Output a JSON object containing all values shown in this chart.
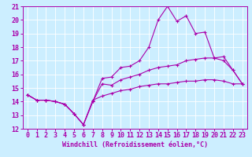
{
  "title": "",
  "xlabel": "Windchill (Refroidissement éolien,°C)",
  "ylabel": "",
  "bg_color": "#cceeff",
  "line_color": "#aa00aa",
  "grid_color": "#ffffff",
  "spine_color": "#aa00aa",
  "xlim": [
    -0.5,
    23.5
  ],
  "ylim": [
    12,
    21
  ],
  "yticks": [
    12,
    13,
    14,
    15,
    16,
    17,
    18,
    19,
    20,
    21
  ],
  "xticks": [
    0,
    1,
    2,
    3,
    4,
    5,
    6,
    7,
    8,
    9,
    10,
    11,
    12,
    13,
    14,
    15,
    16,
    17,
    18,
    19,
    20,
    21,
    22,
    23
  ],
  "line1_x": [
    0,
    1,
    2,
    3,
    4,
    5,
    6,
    7,
    8,
    9,
    10,
    11,
    12,
    13,
    14,
    15,
    16,
    17,
    18,
    19,
    20,
    21,
    22,
    23
  ],
  "line1_y": [
    14.5,
    14.1,
    14.1,
    14.0,
    13.8,
    13.1,
    12.3,
    14.0,
    15.7,
    15.8,
    16.5,
    16.6,
    17.0,
    18.0,
    20.0,
    21.0,
    19.9,
    20.3,
    19.0,
    19.1,
    17.2,
    17.3,
    16.3,
    15.3
  ],
  "line2_x": [
    0,
    1,
    2,
    3,
    4,
    5,
    6,
    7,
    8,
    9,
    10,
    11,
    12,
    13,
    14,
    15,
    16,
    17,
    18,
    19,
    20,
    21,
    22,
    23
  ],
  "line2_y": [
    14.5,
    14.1,
    14.1,
    14.0,
    13.8,
    13.1,
    12.3,
    14.0,
    15.3,
    15.2,
    15.6,
    15.8,
    16.0,
    16.3,
    16.5,
    16.6,
    16.7,
    17.0,
    17.1,
    17.2,
    17.2,
    17.0,
    16.3,
    15.3
  ],
  "line3_x": [
    0,
    1,
    2,
    3,
    4,
    5,
    6,
    7,
    8,
    9,
    10,
    11,
    12,
    13,
    14,
    15,
    16,
    17,
    18,
    19,
    20,
    21,
    22,
    23
  ],
  "line3_y": [
    14.5,
    14.1,
    14.1,
    14.0,
    13.8,
    13.1,
    12.3,
    14.1,
    14.4,
    14.6,
    14.8,
    14.9,
    15.1,
    15.2,
    15.3,
    15.3,
    15.4,
    15.5,
    15.5,
    15.6,
    15.6,
    15.5,
    15.3,
    15.3
  ],
  "tick_fontsize": 6,
  "xlabel_fontsize": 6,
  "linewidth": 0.8,
  "markersize": 3
}
